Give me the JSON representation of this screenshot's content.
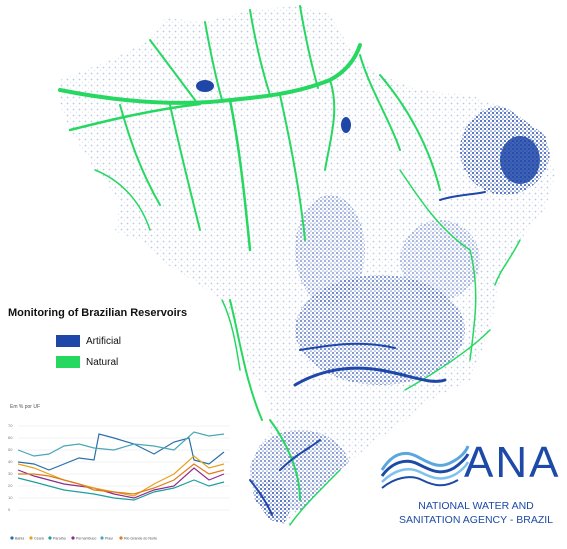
{
  "map": {
    "subject": "Brazil",
    "colors": {
      "artificial": "#1f47a8",
      "natural": "#27d860",
      "background": "#ffffff",
      "dots": "#9db0e0"
    }
  },
  "legend": {
    "title": "Monitoring of Brazilian Reservoirs",
    "items": [
      {
        "label": "Artificial",
        "color": "#1f47a8"
      },
      {
        "label": "Natural",
        "color": "#27d860"
      }
    ]
  },
  "inset_chart": {
    "caption": "Em % por UF",
    "y_ticks": [
      "70",
      "60",
      "50",
      "40",
      "30",
      "20",
      "10",
      "0"
    ],
    "series_labels": [
      "Bahia",
      "Ceará",
      "Paraíba",
      "Pernambuco",
      "Piauí",
      "Rio Grande do Norte"
    ],
    "series_colors": [
      "#2a6fa8",
      "#e5a21b",
      "#1f9e9e",
      "#8b2c8b",
      "#4aa6b8",
      "#e07b1e"
    ]
  },
  "logo": {
    "word": "ANA",
    "line1": "NATIONAL WATER AND",
    "line2": "SANITATION AGENCY - BRAZIL"
  }
}
